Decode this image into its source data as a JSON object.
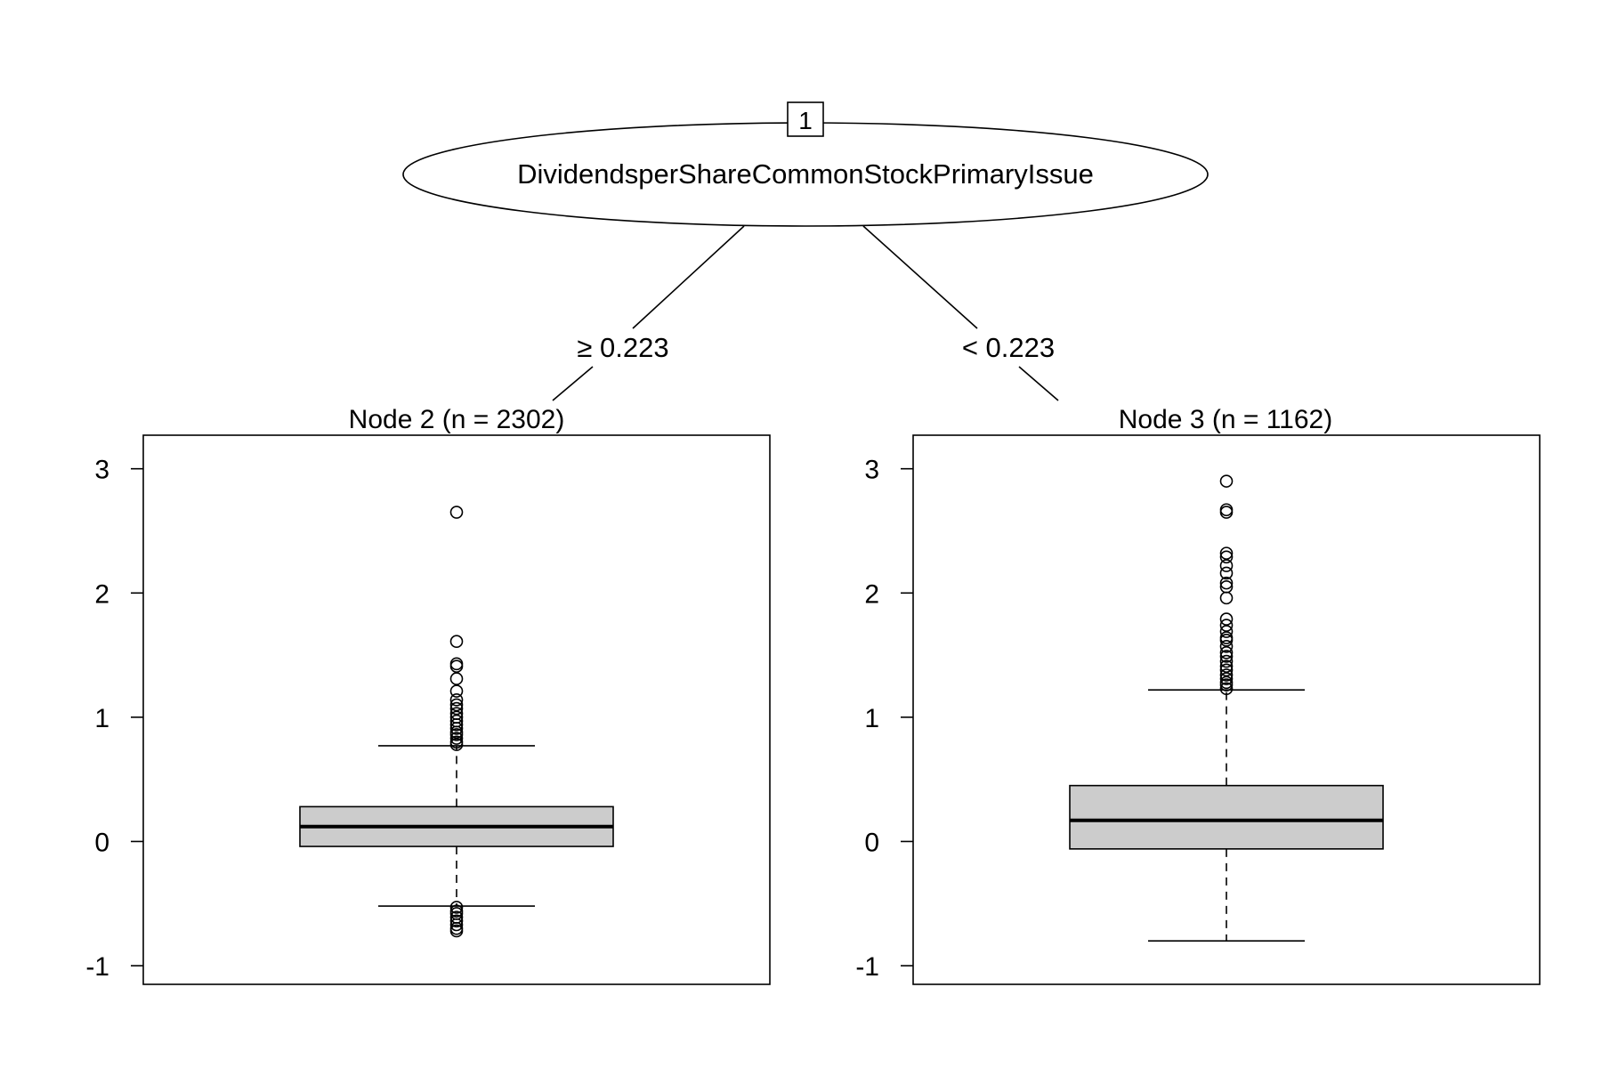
{
  "chart_data": {
    "type": "tree",
    "root": {
      "id": "1",
      "split_variable": "DividendsperShareCommonStockPrimaryIssue"
    },
    "edges": [
      {
        "label": "≥ 0.223",
        "to": "Node 2"
      },
      {
        "label": "< 0.223",
        "to": "Node 3"
      }
    ],
    "panels": [
      {
        "title": "Node 2 (n = 2302)",
        "type": "boxplot",
        "ylim": [
          -1.15,
          3.27
        ],
        "yticks": [
          -1,
          0,
          1,
          2,
          3
        ],
        "box": {
          "whisker_low": -0.52,
          "q1": -0.04,
          "median": 0.12,
          "q3": 0.28,
          "whisker_high": 0.77
        },
        "outliers": [
          2.65,
          1.61,
          1.43,
          1.41,
          1.31,
          1.21,
          1.14,
          1.1,
          1.07,
          1.03,
          1.0,
          0.97,
          0.94,
          0.91,
          0.88,
          0.86,
          0.83,
          0.8,
          0.78,
          -0.53,
          -0.56,
          -0.58,
          -0.61,
          -0.64,
          -0.67,
          -0.7,
          -0.72
        ]
      },
      {
        "title": "Node 3 (n = 1162)",
        "type": "boxplot",
        "ylim": [
          -1.15,
          3.27
        ],
        "yticks": [
          -1,
          0,
          1,
          2,
          3
        ],
        "box": {
          "whisker_low": -0.8,
          "q1": -0.06,
          "median": 0.17,
          "q3": 0.45,
          "whisker_high": 1.22
        },
        "outliers": [
          2.9,
          2.67,
          2.65,
          2.32,
          2.29,
          2.22,
          2.16,
          2.08,
          2.05,
          1.96,
          1.79,
          1.74,
          1.69,
          1.64,
          1.62,
          1.57,
          1.52,
          1.49,
          1.45,
          1.41,
          1.38,
          1.34,
          1.31,
          1.28,
          1.26,
          1.23
        ]
      }
    ]
  }
}
